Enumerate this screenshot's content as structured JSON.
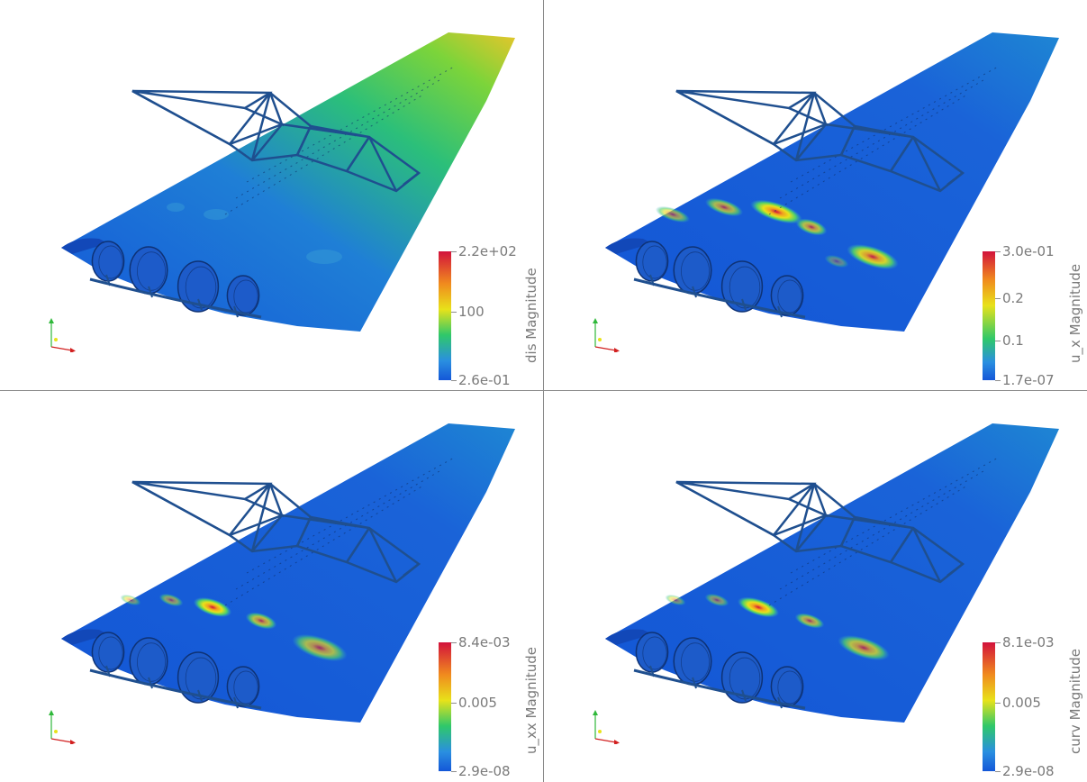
{
  "views": [
    {
      "id": "dis",
      "colorbar_title": "dis Magnitude",
      "max_label": "2.2e+02",
      "mid_labels": [
        "100"
      ],
      "min_label": "2.6e-01",
      "surface": "gradient"
    },
    {
      "id": "u_x",
      "colorbar_title": "u_x Magnitude",
      "max_label": "3.0e-01",
      "mid_labels": [
        "0.2",
        "0.1"
      ],
      "min_label": "1.7e-07",
      "surface": "spots"
    },
    {
      "id": "u_xx",
      "colorbar_title": "u_xx Magnitude",
      "max_label": "8.4e-03",
      "mid_labels": [
        "0.005"
      ],
      "min_label": "2.9e-08",
      "surface": "spots"
    },
    {
      "id": "curv",
      "colorbar_title": "curv Magnitude",
      "max_label": "8.1e-03",
      "mid_labels": [
        "0.005"
      ],
      "min_label": "2.9e-08",
      "surface": "spots"
    }
  ],
  "colors": {
    "structure": "#1f4f8f",
    "low": "#1a5fd6",
    "mid": "#2fc86a",
    "high_yellow": "#e8e21a",
    "high_red": "#d2123c"
  }
}
